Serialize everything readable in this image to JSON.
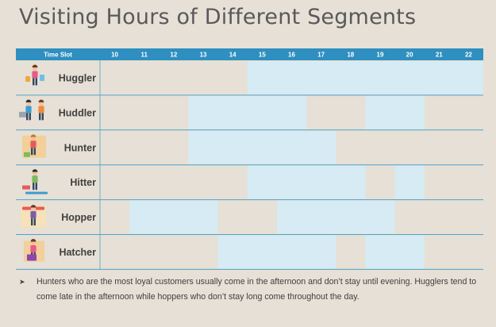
{
  "title": "Visiting Hours of Different Segments",
  "chart_data": {
    "type": "table",
    "header_label": "Time Slot",
    "hours": [
      10,
      11,
      12,
      13,
      14,
      15,
      16,
      17,
      18,
      19,
      20,
      21,
      22
    ],
    "rows": [
      {
        "segment": "Huggler",
        "icon": "shopper-with-bags-icon",
        "visits": [
          [
            15,
            23
          ]
        ]
      },
      {
        "segment": "Huddler",
        "icon": "couple-with-cart-icon",
        "visits": [
          [
            13,
            17
          ],
          [
            19,
            21
          ]
        ]
      },
      {
        "segment": "Hunter",
        "icon": "shopper-at-shelves-icon",
        "visits": [
          [
            13,
            18
          ]
        ]
      },
      {
        "segment": "Hitter",
        "icon": "shopper-with-basket-icon",
        "visits": [
          [
            15,
            19
          ],
          [
            20,
            21
          ]
        ]
      },
      {
        "segment": "Hopper",
        "icon": "shopper-at-store-icon",
        "visits": [
          [
            11,
            14
          ],
          [
            16,
            20
          ]
        ]
      },
      {
        "segment": "Hatcher",
        "icon": "seated-shopper-icon",
        "visits": [
          [
            14,
            18
          ],
          [
            19,
            21
          ]
        ]
      }
    ]
  },
  "colors": {
    "header": "#2e8fc0",
    "highlight": "#d6ebf3",
    "background": "#e6e0d6",
    "divider": "#4fa3c8"
  },
  "note": {
    "bullet": "➤",
    "text": "Hunters who are the most loyal customers usually come in the afternoon and don’t stay until evening. Hugglers tend to come late in the afternoon while hoppers who don’t stay long come throughout the day."
  }
}
